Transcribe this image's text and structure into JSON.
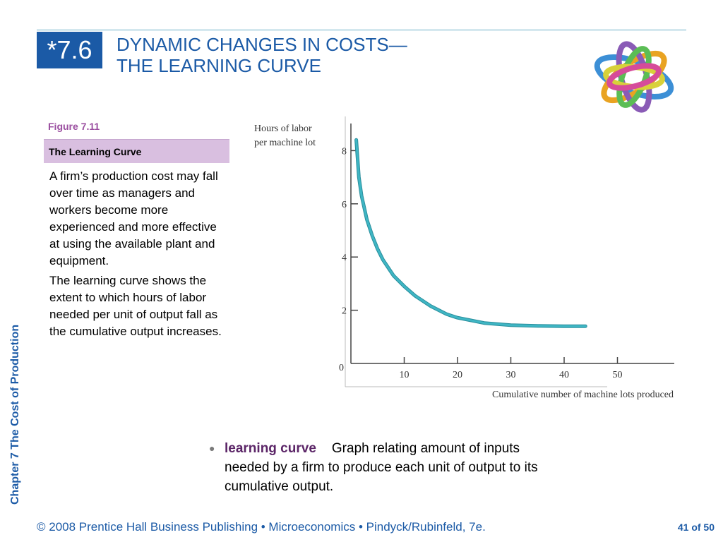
{
  "slide": {
    "section_number": "*7.6",
    "title_line1": "DYNAMIC CHANGES IN COSTS—",
    "title_line2": "THE LEARNING CURVE",
    "side_label": "Chapter 7  The Cost of Production"
  },
  "figure": {
    "label": "Figure 7.11",
    "title": "The Learning Curve",
    "paragraph1": "A firm’s production cost may fall over time as managers and workers become more experienced and more effective at using the available plant and equipment.",
    "paragraph2": "The learning curve shows the extent to which hours of labor needed per unit of output fall as the cumulative output increases."
  },
  "definition": {
    "term": "learning curve",
    "text": "Graph relating amount of inputs needed by a firm to produce each unit of output to its cumulative output."
  },
  "footer": {
    "copyright": "© 2008 Prentice Hall Business Publishing  •  Microeconomics  •  Pindyck/Rubinfeld, 7e.",
    "page": "41 of 50"
  },
  "colors": {
    "accent_blue": "#1b5aa6",
    "figure_purple": "#9b4fa0",
    "figure_bar": "#d9bfe0",
    "curve": "#3fb6c4"
  },
  "chart_data": {
    "type": "line",
    "ylabel_line1": "Hours of  labor",
    "ylabel_line2": "per machine lot",
    "xlabel": "Cumulative number of machine lots produced",
    "xlim": [
      0,
      58
    ],
    "ylim": [
      0,
      9
    ],
    "x_ticks": [
      "10",
      "20",
      "30",
      "40",
      "50"
    ],
    "y_ticks": [
      "8",
      "6",
      "4",
      "2"
    ],
    "origin_label": "0",
    "grid": false,
    "series": [
      {
        "x": [
          1,
          1.5,
          2,
          3,
          4,
          5,
          6,
          8,
          10,
          12,
          15,
          18,
          20,
          25,
          30,
          35,
          40,
          44
        ],
        "values": [
          8.4,
          7.0,
          6.3,
          5.4,
          4.8,
          4.3,
          3.9,
          3.3,
          2.9,
          2.55,
          2.15,
          1.85,
          1.72,
          1.52,
          1.44,
          1.41,
          1.4,
          1.4
        ]
      }
    ]
  }
}
